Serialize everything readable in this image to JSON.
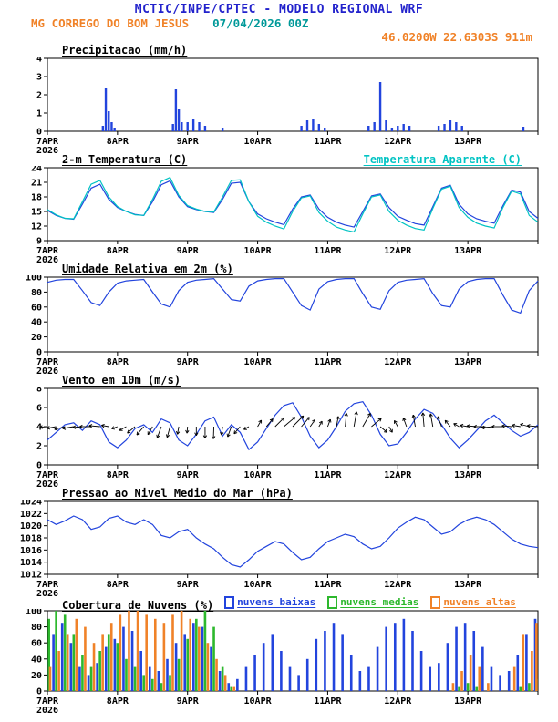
{
  "header": {
    "line1": "MCTIC/INPE/CPTEC - MODELO REGIONAL WRF",
    "station": "MG CORREGO DO BOM JESUS",
    "run": "07/04/2026 00Z",
    "location": "46.0200W 22.6303S 911m"
  },
  "colors": {
    "header_blue": "#2222cc",
    "orange": "#f08228",
    "teal": "#009999",
    "line_blue": "#2244dd",
    "cyan": "#00c3c3",
    "green": "#2db82d",
    "black": "#000000"
  },
  "x_axis": {
    "hours": 168,
    "day_labels": [
      "7APR",
      "8APR",
      "9APR",
      "10APR",
      "11APR",
      "12APR",
      "13APR"
    ],
    "year": "2026"
  },
  "chart_data": [
    {
      "id": "precip",
      "type": "bar",
      "title": "Precipitacao (mm/h)",
      "ylabel": "mm/h",
      "ylim": [
        0,
        4
      ],
      "yticks": [
        0,
        1,
        2,
        3,
        4
      ],
      "color": "line_blue",
      "points": [
        [
          19,
          0.3
        ],
        [
          20,
          2.4
        ],
        [
          21,
          1.1
        ],
        [
          22,
          0.5
        ],
        [
          23,
          0.2
        ],
        [
          43,
          0.4
        ],
        [
          44,
          2.3
        ],
        [
          45,
          1.2
        ],
        [
          46,
          0.5
        ],
        [
          48,
          0.5
        ],
        [
          50,
          0.7
        ],
        [
          52,
          0.5
        ],
        [
          54,
          0.3
        ],
        [
          60,
          0.2
        ],
        [
          87,
          0.3
        ],
        [
          89,
          0.6
        ],
        [
          91,
          0.7
        ],
        [
          93,
          0.4
        ],
        [
          95,
          0.2
        ],
        [
          110,
          0.3
        ],
        [
          112,
          0.5
        ],
        [
          114,
          2.7
        ],
        [
          116,
          0.6
        ],
        [
          118,
          0.2
        ],
        [
          120,
          0.3
        ],
        [
          122,
          0.4
        ],
        [
          124,
          0.3
        ],
        [
          134,
          0.3
        ],
        [
          136,
          0.4
        ],
        [
          138,
          0.6
        ],
        [
          140,
          0.5
        ],
        [
          142,
          0.3
        ],
        [
          163,
          0.25
        ]
      ]
    },
    {
      "id": "temp",
      "type": "line",
      "title": "2-m Temperatura (C)",
      "legend_right": {
        "label": "Temperatura Aparente (C)",
        "color": "cyan"
      },
      "ylim": [
        9,
        24
      ],
      "yticks": [
        9,
        12,
        15,
        18,
        21,
        24
      ],
      "step_hours": 3,
      "series": [
        {
          "name": "2-m Temperatura",
          "color": "line_blue",
          "values": [
            15.2,
            14.2,
            13.6,
            13.4,
            16.5,
            19.8,
            20.6,
            17.5,
            15.8,
            15.0,
            14.4,
            14.2,
            17.0,
            20.5,
            21.3,
            18.0,
            16.0,
            15.4,
            15.0,
            14.8,
            17.5,
            20.8,
            21.0,
            17.0,
            14.5,
            13.5,
            12.8,
            12.3,
            15.5,
            18.0,
            18.4,
            15.5,
            13.8,
            12.8,
            12.2,
            11.8,
            15.0,
            18.2,
            18.6,
            15.8,
            14.0,
            13.2,
            12.5,
            12.2,
            16.0,
            19.8,
            20.4,
            16.5,
            14.5,
            13.5,
            13.0,
            12.6,
            16.2,
            19.4,
            19.0,
            15.0,
            13.6
          ]
        },
        {
          "name": "Temperatura Aparente",
          "color": "cyan",
          "values": [
            15.4,
            14.3,
            13.6,
            13.5,
            17.0,
            20.6,
            21.4,
            18.0,
            16.0,
            15.0,
            14.3,
            14.2,
            17.5,
            21.2,
            22.0,
            18.3,
            16.2,
            15.5,
            15.0,
            14.9,
            18.0,
            21.4,
            21.5,
            17.0,
            14.0,
            12.8,
            12.0,
            11.4,
            15.0,
            17.8,
            18.2,
            14.8,
            13.0,
            11.8,
            11.2,
            10.8,
            14.5,
            18.0,
            18.4,
            15.0,
            13.2,
            12.2,
            11.5,
            11.2,
            15.6,
            19.6,
            20.2,
            15.8,
            13.8,
            12.6,
            12.0,
            11.6,
            15.8,
            19.2,
            18.6,
            14.2,
            12.8
          ]
        }
      ]
    },
    {
      "id": "rh",
      "type": "line",
      "title": "Umidade Relativa em 2m (%)",
      "ylim": [
        0,
        100
      ],
      "yticks": [
        0,
        20,
        40,
        60,
        80,
        100
      ],
      "step_hours": 3,
      "series": [
        {
          "name": "Umidade Relativa",
          "color": "line_blue",
          "values": [
            93,
            96,
            97,
            97,
            82,
            66,
            62,
            80,
            92,
            95,
            96,
            97,
            80,
            64,
            60,
            82,
            93,
            96,
            97,
            98,
            84,
            70,
            68,
            88,
            95,
            97,
            98,
            98,
            80,
            62,
            56,
            84,
            94,
            97,
            98,
            98,
            78,
            60,
            57,
            82,
            93,
            96,
            97,
            98,
            78,
            62,
            60,
            84,
            94,
            97,
            98,
            98,
            76,
            56,
            52,
            82,
            95
          ]
        }
      ]
    },
    {
      "id": "wind",
      "type": "wind",
      "title": "Vento em 10m (m/s)",
      "ylim": [
        0,
        8
      ],
      "yticks": [
        0,
        2,
        4,
        6,
        8
      ],
      "step_hours": 3,
      "series": [
        {
          "name": "Velocidade do Vento",
          "color": "line_blue",
          "values": [
            2.6,
            3.4,
            4.2,
            4.4,
            3.6,
            4.6,
            4.2,
            2.4,
            1.8,
            2.6,
            3.8,
            4.2,
            3.4,
            4.8,
            4.4,
            2.6,
            2.0,
            3.2,
            4.6,
            5.0,
            3.0,
            4.2,
            3.4,
            1.6,
            2.4,
            3.8,
            5.2,
            6.2,
            6.5,
            5.0,
            3.0,
            1.8,
            2.6,
            4.0,
            5.6,
            6.4,
            6.6,
            5.2,
            3.2,
            2.0,
            2.2,
            3.4,
            4.8,
            5.8,
            5.4,
            4.2,
            2.8,
            1.8,
            2.6,
            3.6,
            4.6,
            5.2,
            4.4,
            3.6,
            3.0,
            3.4,
            4.2
          ]
        }
      ],
      "arrows": {
        "anchor": 4,
        "dirs_deg": [
          185,
          190,
          195,
          190,
          185,
          180,
          175,
          170,
          200,
          210,
          220,
          230,
          240,
          250,
          255,
          260,
          265,
          270,
          270,
          268,
          262,
          250,
          230,
          210,
          60,
          50,
          45,
          40,
          45,
          50,
          55,
          60,
          70,
          80,
          85,
          80,
          60,
          40,
          320,
          300,
          120,
          110,
          100,
          95,
          100,
          110,
          130,
          150,
          170,
          175,
          180,
          185,
          180,
          175,
          170,
          165,
          175
        ]
      }
    },
    {
      "id": "pressure",
      "type": "line",
      "title": "Pressao ao Nivel Medio do Mar (hPa)",
      "ylim": [
        1012,
        1024
      ],
      "yticks": [
        1012,
        1014,
        1016,
        1018,
        1020,
        1022,
        1024
      ],
      "step_hours": 3,
      "series": [
        {
          "name": "Pressao",
          "color": "line_blue",
          "values": [
            1021.0,
            1020.2,
            1020.8,
            1021.6,
            1021.0,
            1019.4,
            1019.8,
            1021.2,
            1021.6,
            1020.6,
            1020.2,
            1021.0,
            1020.2,
            1018.4,
            1018.0,
            1019.0,
            1019.4,
            1018.0,
            1017.0,
            1016.2,
            1014.8,
            1013.6,
            1013.2,
            1014.4,
            1015.8,
            1016.6,
            1017.4,
            1017.0,
            1015.6,
            1014.4,
            1014.8,
            1016.2,
            1017.4,
            1018.0,
            1018.6,
            1018.2,
            1017.0,
            1016.2,
            1016.6,
            1018.0,
            1019.6,
            1020.6,
            1021.4,
            1021.0,
            1019.8,
            1018.6,
            1019.0,
            1020.2,
            1021.0,
            1021.4,
            1021.0,
            1020.2,
            1019.0,
            1017.8,
            1017.0,
            1016.6,
            1016.4
          ]
        }
      ]
    },
    {
      "id": "clouds",
      "type": "groupbar",
      "title": "Cobertura de Nuvens (%)",
      "ylim": [
        0,
        100
      ],
      "yticks": [
        0,
        20,
        40,
        60,
        80,
        100
      ],
      "step_hours": 3,
      "legend": [
        {
          "label": "nuvens baixas",
          "color": "line_blue"
        },
        {
          "label": "nuvens medias",
          "color": "green"
        },
        {
          "label": "nuvens altas",
          "color": "orange"
        }
      ],
      "series": [
        {
          "name": "nuvens baixas",
          "color": "line_blue",
          "values": [
            40,
            70,
            85,
            60,
            30,
            20,
            35,
            55,
            65,
            80,
            75,
            50,
            30,
            25,
            40,
            60,
            70,
            85,
            80,
            55,
            25,
            10,
            15,
            30,
            45,
            60,
            70,
            50,
            30,
            20,
            40,
            65,
            75,
            85,
            70,
            45,
            25,
            30,
            55,
            80,
            85,
            90,
            75,
            50,
            30,
            35,
            60,
            80,
            85,
            75,
            55,
            30,
            20,
            25,
            45,
            70,
            90
          ]
        },
        {
          "name": "nuvens medias",
          "color": "green",
          "values": [
            90,
            100,
            95,
            70,
            45,
            30,
            50,
            70,
            60,
            40,
            30,
            20,
            15,
            10,
            20,
            40,
            65,
            90,
            100,
            80,
            30,
            5,
            0,
            0,
            0,
            0,
            0,
            0,
            0,
            0,
            0,
            0,
            0,
            0,
            0,
            0,
            0,
            0,
            0,
            0,
            0,
            0,
            0,
            0,
            0,
            0,
            0,
            5,
            10,
            5,
            0,
            0,
            0,
            0,
            5,
            10,
            15
          ]
        },
        {
          "name": "nuvens altas",
          "color": "orange",
          "values": [
            30,
            50,
            70,
            90,
            80,
            60,
            70,
            85,
            95,
            100,
            100,
            95,
            90,
            85,
            95,
            100,
            90,
            80,
            60,
            40,
            20,
            5,
            0,
            0,
            0,
            0,
            0,
            0,
            0,
            0,
            0,
            0,
            0,
            0,
            0,
            0,
            0,
            0,
            0,
            0,
            0,
            0,
            0,
            0,
            0,
            0,
            10,
            25,
            45,
            30,
            10,
            0,
            0,
            30,
            70,
            50,
            85
          ]
        }
      ]
    }
  ]
}
